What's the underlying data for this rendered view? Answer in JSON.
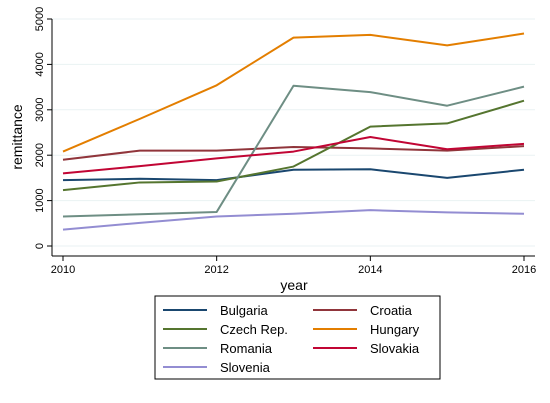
{
  "chart_data": {
    "type": "line",
    "xlabel": "year",
    "ylabel": "remittance",
    "x": [
      2010,
      2011,
      2012,
      2013,
      2014,
      2015,
      2016
    ],
    "xlim": [
      2010,
      2016
    ],
    "ylim": [
      0,
      5000
    ],
    "x_ticks": [
      "2010",
      "2012",
      "2014",
      "2016"
    ],
    "y_ticks": [
      "0",
      "1000",
      "2000",
      "3000",
      "4000",
      "5000"
    ],
    "grid": true,
    "legend_position": "bottom",
    "series": [
      {
        "name": "Bulgaria",
        "color": "#1a476f",
        "values": [
          1450,
          1480,
          1450,
          1680,
          1690,
          1500,
          1680
        ]
      },
      {
        "name": "Croatia",
        "color": "#90353b",
        "values": [
          1900,
          2100,
          2100,
          2180,
          2150,
          2100,
          2200
        ]
      },
      {
        "name": "Czech Rep.",
        "color": "#55752f",
        "values": [
          1230,
          1400,
          1420,
          1750,
          2630,
          2700,
          3200
        ]
      },
      {
        "name": "Hungary",
        "color": "#e37e00",
        "values": [
          2080,
          2800,
          3540,
          4590,
          4650,
          4420,
          4680
        ]
      },
      {
        "name": "Romania",
        "color": "#6e8e84",
        "values": [
          650,
          700,
          750,
          3530,
          3390,
          3090,
          3510
        ]
      },
      {
        "name": "Slovakia",
        "color": "#c10534",
        "values": [
          1600,
          1760,
          1930,
          2080,
          2400,
          2130,
          2250
        ]
      },
      {
        "name": "Slovenia",
        "color": "#938dd2",
        "values": [
          360,
          510,
          650,
          710,
          790,
          740,
          710
        ]
      }
    ]
  }
}
